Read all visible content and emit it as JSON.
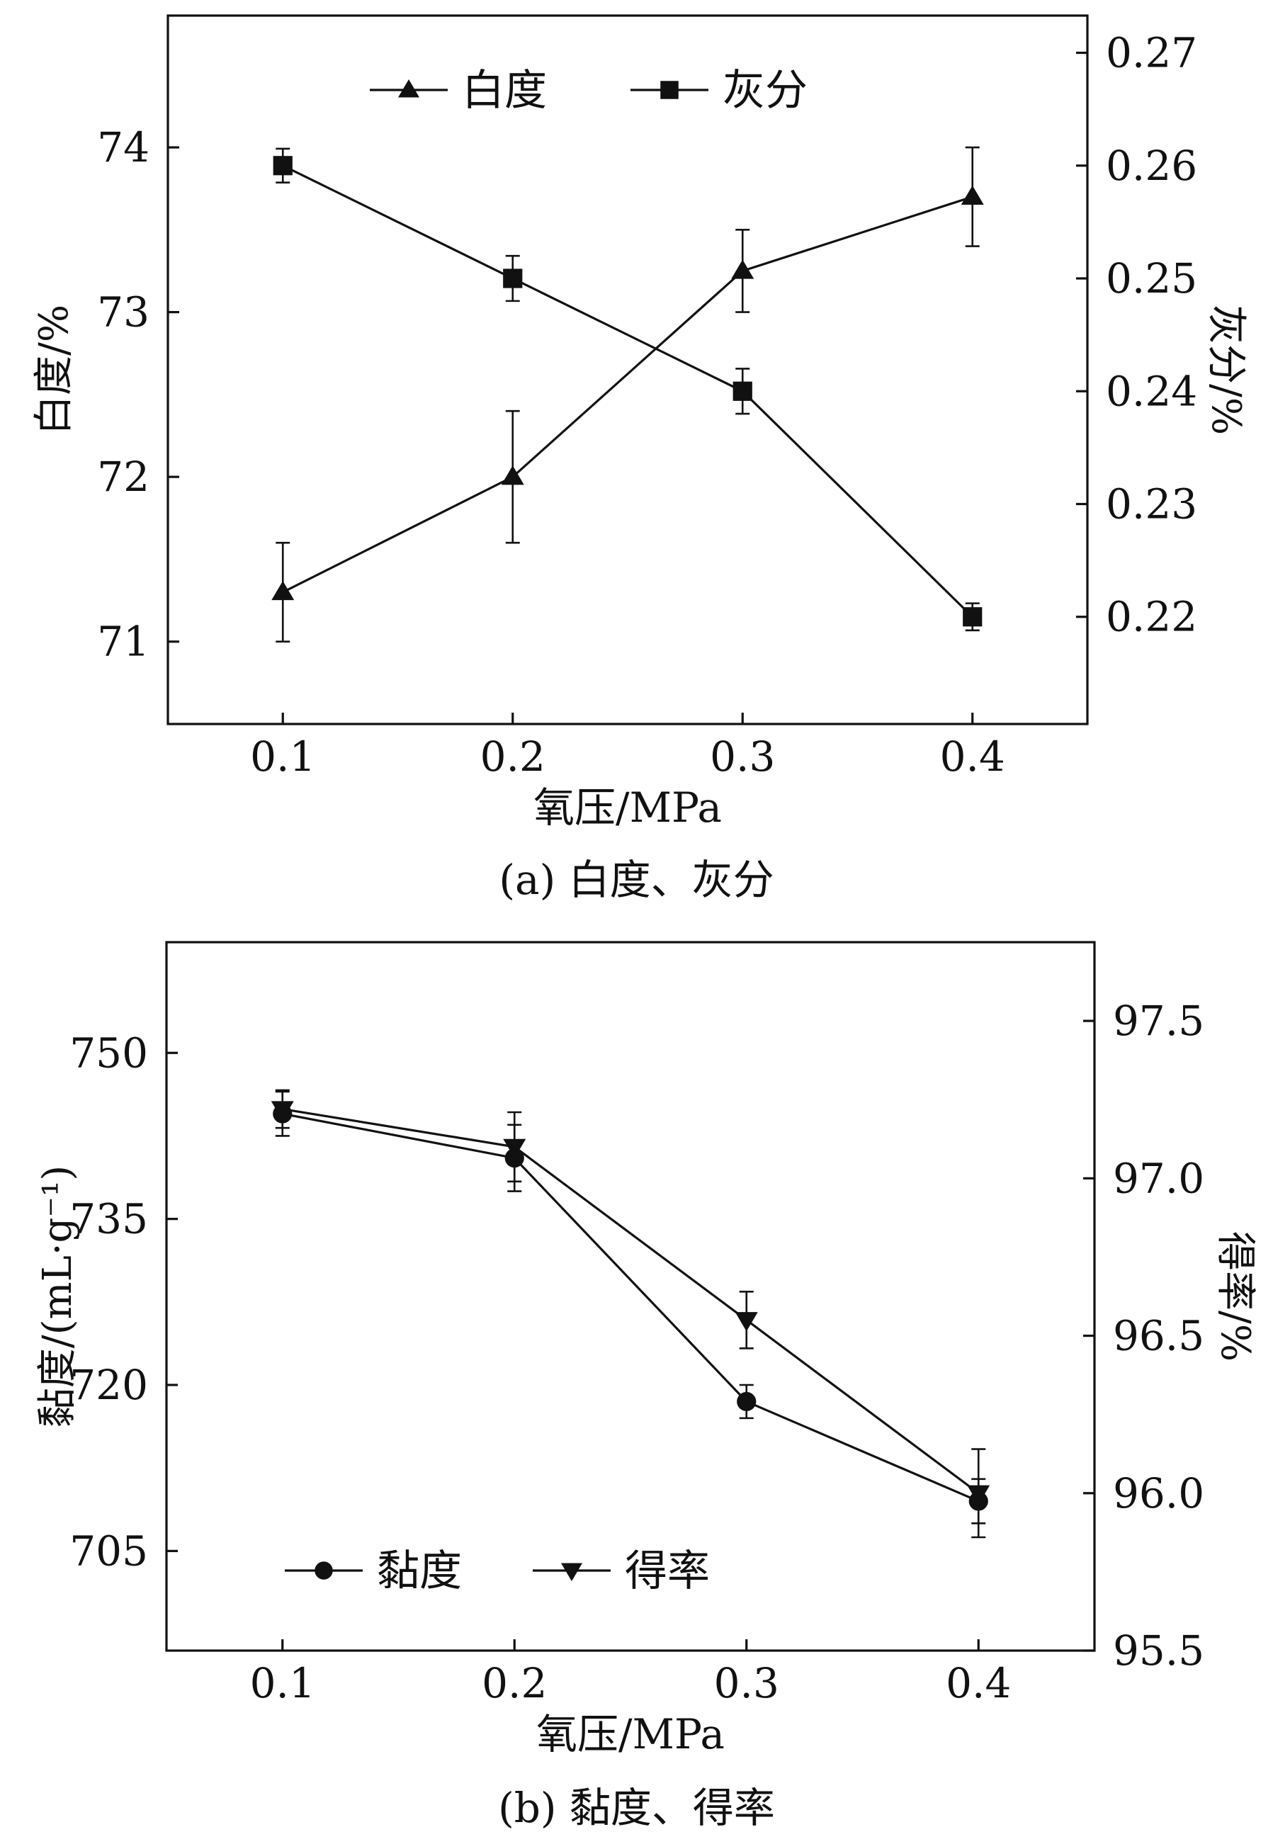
{
  "colors": {
    "ink": "#111111",
    "background": "#ffffff"
  },
  "chart_data": [
    {
      "type": "line",
      "caption": "(a) 白度、灰分",
      "xlabel": "氧压/MPa",
      "x": [
        0.1,
        0.2,
        0.3,
        0.4
      ],
      "x_ticks": [
        "0.1",
        "0.2",
        "0.3",
        "0.4"
      ],
      "xlim": [
        0.05,
        0.45
      ],
      "ylabel_left": "白度/%",
      "ylim_left": [
        70.5,
        74.8
      ],
      "yticks_left": [
        "71",
        "72",
        "73",
        "74"
      ],
      "ylabel_right": "灰分/%",
      "ylim_right": [
        0.2105,
        0.2733
      ],
      "yticks_right": [
        "0.22",
        "0.23",
        "0.24",
        "0.25",
        "0.26",
        "0.27"
      ],
      "legend_position": "top",
      "series": [
        {
          "name": "白度",
          "axis": "left",
          "marker": "triangle-up",
          "values": [
            71.3,
            72.0,
            73.25,
            73.7
          ],
          "errors": [
            0.3,
            0.4,
            0.25,
            0.3
          ]
        },
        {
          "name": "灰分",
          "axis": "right",
          "marker": "square",
          "values": [
            0.26,
            0.25,
            0.24,
            0.22
          ],
          "errors": [
            0.0015,
            0.002,
            0.002,
            0.0012
          ]
        }
      ]
    },
    {
      "type": "line",
      "caption": "(b) 黏度、得率",
      "xlabel": "氧压/MPa",
      "x": [
        0.1,
        0.2,
        0.3,
        0.4
      ],
      "x_ticks": [
        "0.1",
        "0.2",
        "0.3",
        "0.4"
      ],
      "xlim": [
        0.05,
        0.45
      ],
      "ylabel_left": "黏度/(mL·g⁻¹)",
      "ylim_left": [
        696,
        760
      ],
      "yticks_left": [
        "705",
        "720",
        "735",
        "750"
      ],
      "ylabel_right": "得率/%",
      "ylim_right": [
        95.5,
        97.75
      ],
      "yticks_right": [
        "95.5",
        "96.0",
        "96.5",
        "97.0",
        "97.5"
      ],
      "legend_position": "bottom-left",
      "series": [
        {
          "name": "黏度",
          "axis": "left",
          "marker": "circle",
          "values": [
            744.5,
            740.5,
            718.5,
            709.5
          ],
          "errors": [
            2.0,
            3.0,
            1.5,
            2.0
          ]
        },
        {
          "name": "得率",
          "axis": "right",
          "marker": "triangle-down",
          "values": [
            97.22,
            97.1,
            96.55,
            96.0
          ],
          "errors": [
            0.06,
            0.11,
            0.09,
            0.14
          ]
        }
      ]
    }
  ]
}
